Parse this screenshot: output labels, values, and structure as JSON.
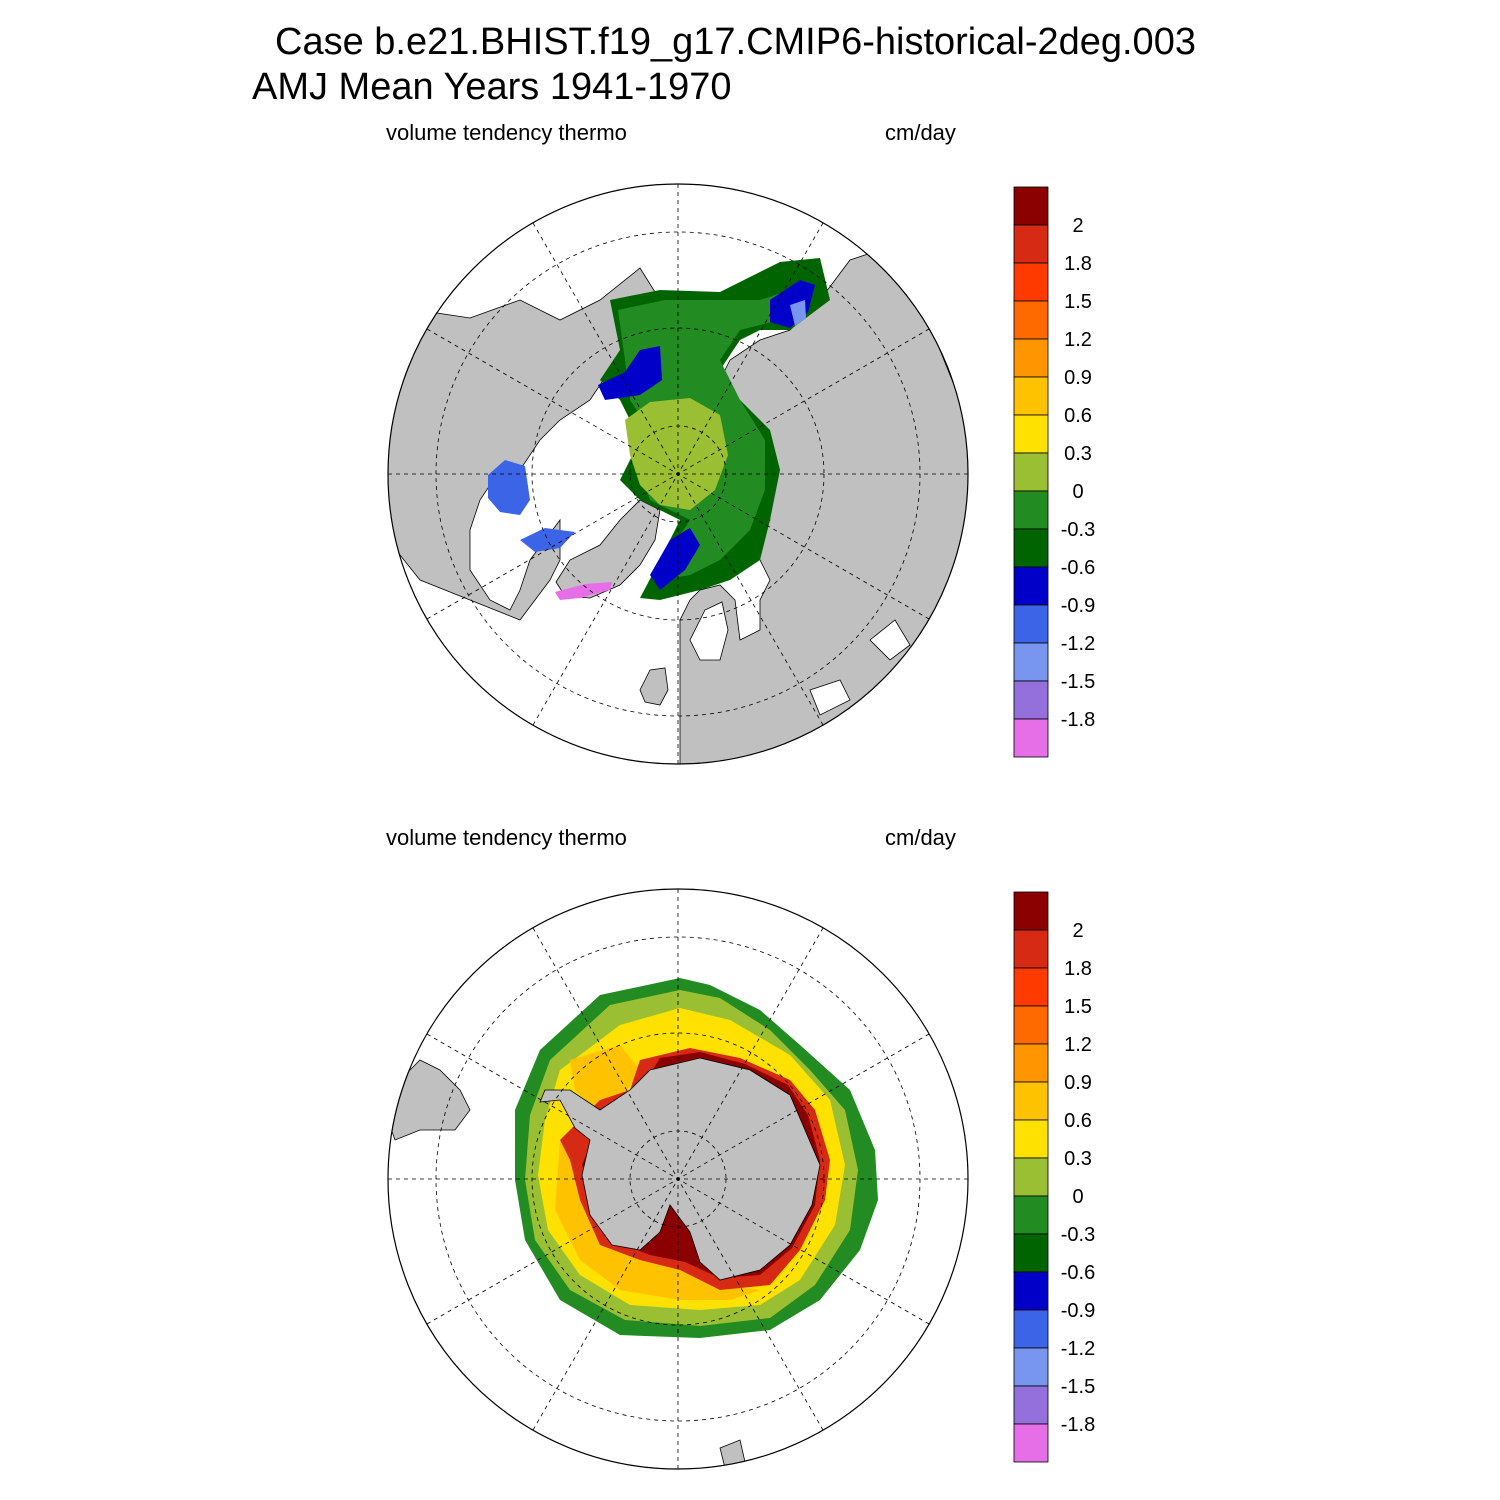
{
  "title": {
    "line1": "Case b.e21.BHIST.f19_g17.CMIP6-historical-2deg.003",
    "line2": "AMJ Mean   Years 1941-1970"
  },
  "panels": [
    {
      "id": "north",
      "left_label": "volume tendency thermo",
      "right_label": "cm/day"
    },
    {
      "id": "south",
      "left_label": "volume tendency thermo",
      "right_label": "cm/day"
    }
  ],
  "colorbar": {
    "labels": [
      "2",
      "1.8",
      "1.5",
      "1.2",
      "0.9",
      "0.6",
      "0.3",
      "0",
      "-0.3",
      "-0.6",
      "-0.9",
      "-1.2",
      "-1.5",
      "-1.8"
    ],
    "colors": [
      "#8b0000",
      "#d62a14",
      "#ff3a00",
      "#ff6a00",
      "#ff9500",
      "#ffc200",
      "#ffe100",
      "#9bbf33",
      "#228b22",
      "#006400",
      "#0000c8",
      "#3c64e6",
      "#7896f0",
      "#9370db",
      "#e66ee6"
    ]
  },
  "colors": {
    "land": "#c0c0c0",
    "ocean": "#ffffff"
  }
}
